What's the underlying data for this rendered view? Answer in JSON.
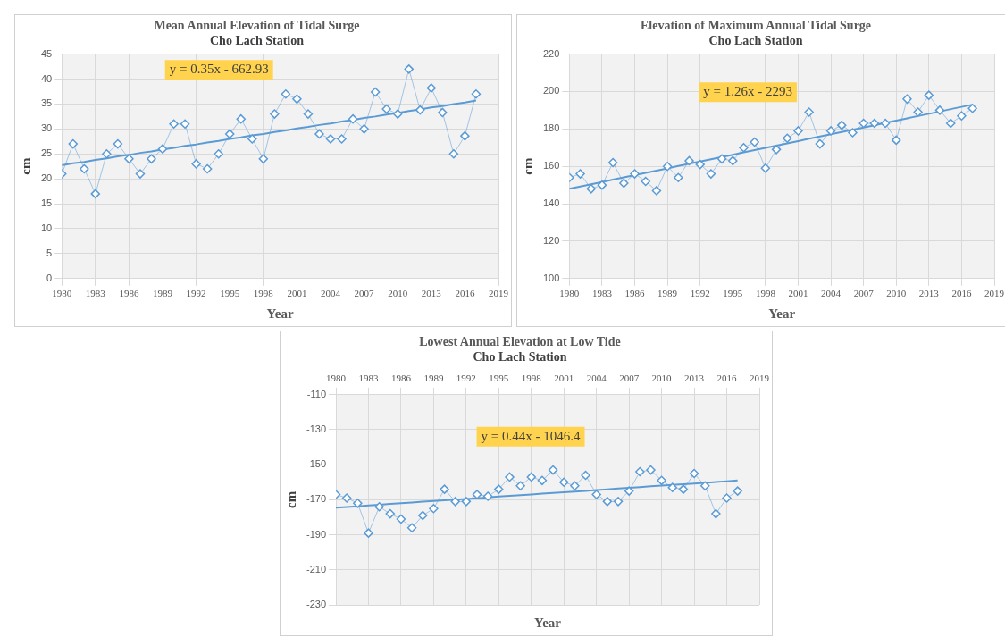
{
  "chart_data": [
    {
      "type": "line",
      "title": "Mean Annual Elevation of Tidal Surge",
      "subtitle": "Cho Lach Station",
      "xlabel": "Year",
      "ylabel": "cm",
      "marker": "diamond",
      "grid": true,
      "legend": false,
      "x": [
        1980,
        1981,
        1982,
        1983,
        1984,
        1985,
        1986,
        1987,
        1988,
        1989,
        1990,
        1991,
        1992,
        1993,
        1994,
        1995,
        1996,
        1997,
        1998,
        1999,
        2000,
        2001,
        2002,
        2003,
        2004,
        2005,
        2006,
        2007,
        2008,
        2009,
        2010,
        2011,
        2012,
        2013,
        2014,
        2015,
        2016,
        2017
      ],
      "series": [
        {
          "color": "#5b9bd5",
          "values": [
            21,
            27,
            22,
            17,
            25,
            27,
            24,
            21,
            24,
            26,
            31,
            31,
            23,
            22,
            25,
            29,
            32,
            28,
            24,
            33,
            37,
            36,
            33,
            29,
            28,
            28,
            32,
            30,
            37.4,
            34,
            33,
            42,
            33.8,
            38.2,
            33.3,
            25,
            28.6,
            37
          ]
        },
        {
          "type": "line",
          "marker": "none",
          "color": "#5b9bd5",
          "values": [
            22.7,
            23.1,
            23.4,
            23.8,
            24.1,
            24.5,
            24.8,
            25.2,
            25.5,
            25.9,
            26.2,
            26.6,
            26.9,
            27.3,
            27.6,
            28,
            28.3,
            28.7,
            29,
            29.4,
            29.7,
            30.1,
            30.4,
            30.8,
            31.1,
            31.5,
            31.8,
            32.2,
            32.5,
            32.9,
            33.2,
            33.6,
            33.9,
            34.3,
            34.6,
            35,
            35.3,
            35.7
          ]
        }
      ],
      "xlim": [
        1980,
        2019
      ],
      "xticks": [
        1980,
        1983,
        1986,
        1989,
        1992,
        1995,
        1998,
        2001,
        2004,
        2007,
        2010,
        2013,
        2016,
        2019
      ],
      "ylim": [
        0,
        45
      ],
      "yticks": [
        0,
        5,
        10,
        15,
        20,
        25,
        30,
        35,
        40,
        45
      ],
      "annotations": [
        "y = 0.35x - 662.93"
      ]
    },
    {
      "type": "line",
      "title": "Elevation of Maximum Annual Tidal Surge",
      "subtitle": "Cho Lach Station",
      "xlabel": "Year",
      "ylabel": "cm",
      "marker": "diamond",
      "grid": true,
      "legend": false,
      "x": [
        1980,
        1981,
        1982,
        1983,
        1984,
        1985,
        1986,
        1987,
        1988,
        1989,
        1990,
        1991,
        1992,
        1993,
        1994,
        1995,
        1996,
        1997,
        1998,
        1999,
        2000,
        2001,
        2002,
        2003,
        2004,
        2005,
        2006,
        2007,
        2008,
        2009,
        2010,
        2011,
        2012,
        2013,
        2014,
        2015,
        2016,
        2017
      ],
      "series": [
        {
          "color": "#5b9bd5",
          "values": [
            154,
            156,
            148,
            150,
            162,
            151,
            156,
            152,
            147,
            160,
            154,
            163,
            161,
            156,
            164,
            163,
            170,
            173,
            159,
            169,
            175,
            179,
            189,
            172,
            179,
            182,
            178,
            183,
            183,
            183,
            174,
            196,
            189,
            198,
            190,
            183,
            187,
            191
          ]
        },
        {
          "type": "line",
          "marker": "none",
          "color": "#5b9bd5",
          "values": [
            148,
            149.2,
            150.4,
            151.6,
            152.9,
            154.1,
            155.3,
            156.5,
            157.7,
            158.9,
            160.2,
            161.4,
            162.6,
            163.8,
            165,
            166.2,
            167.5,
            168.7,
            169.9,
            171.1,
            172.3,
            173.5,
            174.8,
            176,
            177.2,
            178.4,
            179.6,
            180.8,
            182,
            183.3,
            184.5,
            185.7,
            186.9,
            188.1,
            189.3,
            190.6,
            191.8,
            193
          ]
        }
      ],
      "xlim": [
        1980,
        2019
      ],
      "xticks": [
        1980,
        1983,
        1986,
        1989,
        1992,
        1995,
        1998,
        2001,
        2004,
        2007,
        2010,
        2013,
        2016,
        2019
      ],
      "ylim": [
        100,
        220
      ],
      "yticks": [
        100,
        120,
        140,
        160,
        180,
        200,
        220
      ],
      "annotations": [
        "y = 1.26x - 2293"
      ]
    },
    {
      "type": "line",
      "title": "Lowest Annual Elevation at Low Tide",
      "subtitle": "Cho Lach Station",
      "xlabel": "Year",
      "ylabel": "cm",
      "marker": "diamond",
      "grid": true,
      "legend": false,
      "x": [
        1980,
        1981,
        1982,
        1983,
        1984,
        1985,
        1986,
        1987,
        1988,
        1989,
        1990,
        1991,
        1992,
        1993,
        1994,
        1995,
        1996,
        1997,
        1998,
        1999,
        2000,
        2001,
        2002,
        2003,
        2004,
        2005,
        2006,
        2007,
        2008,
        2009,
        2010,
        2011,
        2012,
        2013,
        2014,
        2015,
        2016,
        2017
      ],
      "series": [
        {
          "color": "#5b9bd5",
          "values": [
            -167,
            -169,
            -172,
            -189,
            -174,
            -178,
            -181,
            -186,
            -179,
            -175,
            -164,
            -171,
            -171,
            -167,
            -168,
            -164,
            -157,
            -162,
            -157,
            -159,
            -153,
            -160,
            -162,
            -156,
            -167,
            -171,
            -171,
            -165,
            -154,
            -153,
            -159,
            -163,
            -164,
            -155,
            -162,
            -178,
            -169,
            -165
          ]
        },
        {
          "type": "line",
          "marker": "none",
          "color": "#5b9bd5",
          "values": [
            -174.5,
            -174.1,
            -173.7,
            -173.2,
            -172.8,
            -172.4,
            -172,
            -171.6,
            -171.1,
            -170.7,
            -170.3,
            -169.9,
            -169.5,
            -169.1,
            -168.6,
            -168.2,
            -167.8,
            -167.4,
            -167,
            -166.5,
            -166.1,
            -165.7,
            -165.3,
            -164.9,
            -164.4,
            -164,
            -163.6,
            -163.2,
            -162.8,
            -162.3,
            -161.9,
            -161.5,
            -161.1,
            -160.7,
            -160.3,
            -159.8,
            -159.4,
            -159
          ]
        }
      ],
      "xlim": [
        1980,
        2019
      ],
      "xticks": [
        1980,
        1983,
        1986,
        1989,
        1992,
        1995,
        1998,
        2001,
        2004,
        2007,
        2010,
        2013,
        2016,
        2019
      ],
      "ylim": [
        -230,
        -110
      ],
      "yticks": [
        -230,
        -210,
        -190,
        -170,
        -150,
        -130,
        -110
      ],
      "annotations": [
        "y = 0.44x - 1046.4"
      ]
    }
  ]
}
